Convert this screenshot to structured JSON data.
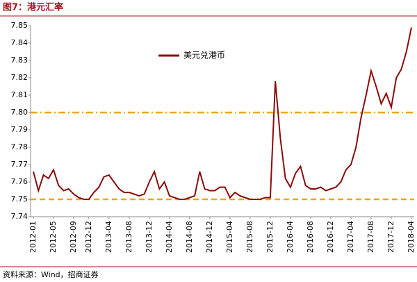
{
  "chart_data": {
    "type": "line",
    "title": "图7：港元汇率",
    "source": "资料来源：Wind，招商证券",
    "categories": [
      "2012-01",
      null,
      null,
      null,
      "2012-05",
      null,
      null,
      null,
      "2012-09",
      null,
      null,
      "2012-12",
      null,
      null,
      null,
      "2013-04",
      null,
      null,
      null,
      "2013-08",
      null,
      null,
      null,
      "2013-12",
      null,
      null,
      null,
      "2014-04",
      null,
      null,
      null,
      "2014-08",
      null,
      null,
      null,
      "2014-12",
      null,
      null,
      null,
      "2015-04",
      null,
      null,
      null,
      "2015-08",
      null,
      null,
      null,
      "2015-12",
      null,
      null,
      null,
      "2016-04",
      null,
      null,
      null,
      "2016-08",
      null,
      null,
      null,
      "2016-12",
      null,
      null,
      null,
      "2017-04",
      null,
      null,
      null,
      "2017-08",
      null,
      null,
      null,
      "2017-12",
      null,
      null,
      null,
      "2018-04"
    ],
    "series": [
      {
        "name": "美元兑港币",
        "color": "#8b0a0a",
        "values": [
          7.766,
          7.755,
          7.764,
          7.762,
          7.767,
          7.758,
          7.755,
          7.756,
          7.753,
          7.751,
          7.75,
          7.75,
          7.754,
          7.757,
          7.763,
          7.764,
          7.76,
          7.756,
          7.754,
          7.754,
          7.753,
          7.752,
          7.753,
          7.76,
          7.766,
          7.756,
          7.76,
          7.752,
          7.751,
          7.75,
          7.75,
          7.751,
          7.752,
          7.766,
          7.756,
          7.755,
          7.755,
          7.757,
          7.757,
          7.751,
          7.754,
          7.752,
          7.751,
          7.75,
          7.75,
          7.75,
          7.751,
          7.751,
          7.818,
          7.785,
          7.762,
          7.757,
          7.765,
          7.769,
          7.758,
          7.756,
          7.756,
          7.757,
          7.755,
          7.756,
          7.757,
          7.76,
          7.767,
          7.77,
          7.78,
          7.797,
          7.81,
          7.824,
          7.815,
          7.805,
          7.811,
          7.803,
          7.82,
          7.825,
          7.835,
          7.849
        ]
      }
    ],
    "reference_lines": [
      {
        "value": 7.8,
        "color": "#f0a500",
        "style": "dashdot"
      },
      {
        "value": 7.75,
        "color": "#f0a500",
        "style": "dashed"
      }
    ],
    "ylim": [
      7.74,
      7.85
    ],
    "yticks": [
      7.74,
      7.75,
      7.76,
      7.77,
      7.78,
      7.79,
      {
        "value": 7.8,
        "label": "7.80"
      },
      7.81,
      7.82,
      7.83,
      7.84,
      7.85
    ],
    "legend": "upper-left"
  }
}
